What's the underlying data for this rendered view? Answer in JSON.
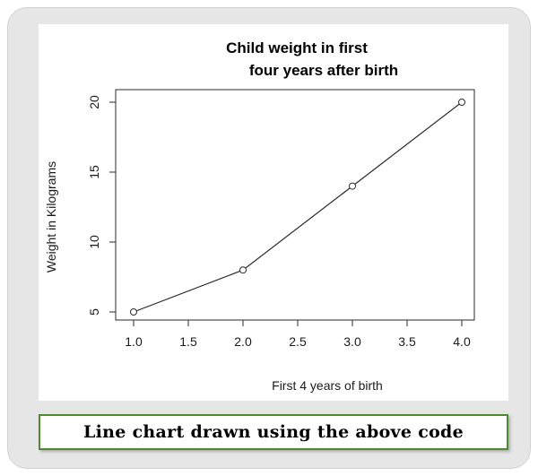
{
  "chart_data": {
    "type": "line",
    "title_lines": [
      "Child weight in first",
      "four years after birth"
    ],
    "xlabel": "First 4 years of birth",
    "ylabel": "Weight in Kilograms",
    "x": [
      1,
      2,
      3,
      4
    ],
    "y": [
      5,
      8,
      14,
      20
    ],
    "xlim": [
      1,
      4
    ],
    "ylim": [
      5,
      20
    ],
    "x_ticks": [
      1.0,
      1.5,
      2.0,
      2.5,
      3.0,
      3.5,
      4.0
    ],
    "x_tick_labels": [
      "1.0",
      "1.5",
      "2.0",
      "2.5",
      "3.0",
      "3.5",
      "4.0"
    ],
    "y_ticks": [
      5,
      10,
      15,
      20
    ],
    "y_tick_labels": [
      "5",
      "10",
      "15",
      "20"
    ],
    "marker": "circle-open",
    "line_color": "#2a2a2a",
    "grid": false,
    "legend": "none"
  },
  "caption": {
    "text": "Line chart drawn using the above code",
    "border_color": "#4f8a32"
  }
}
